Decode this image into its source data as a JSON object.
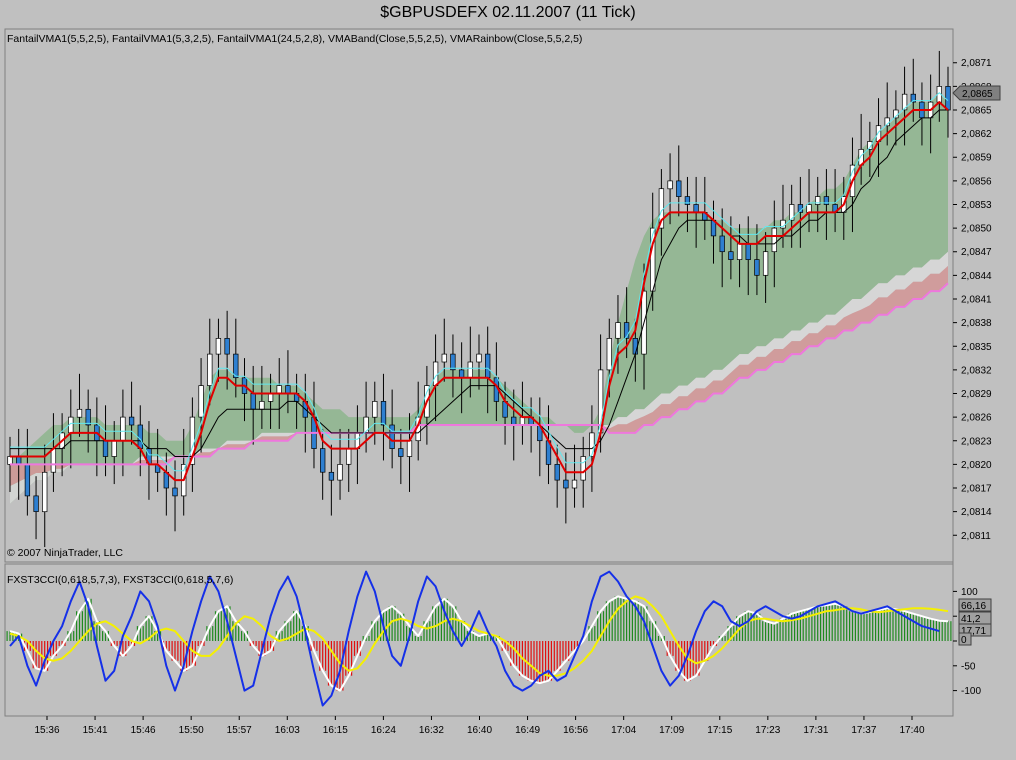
{
  "window": {
    "title": "$GBPUSDEFX  02.11.2007  (11 Tick)"
  },
  "price_panel": {
    "indicators_label": "FantailVMA1(5,5,2,5), FantailVMA1(5,3,2,5), FantailVMA1(24,5,2,8), VMABand(Close,5,5,2,5), VMARainbow(Close,5,5,2,5)",
    "copyright": "© 2007 NinjaTrader, LLC",
    "last_price_tag": "2,0865"
  },
  "cci_panel": {
    "indicators_label": "FXST3CCI(0,618,5,7,3), FXST3CCI(0,618,5,7,6)",
    "value_tags": [
      "66,16",
      "41,2",
      "17,71",
      "0"
    ]
  },
  "colors": {
    "background": "#c0c0c0",
    "up_candle": "#ffffff",
    "down_candle": "#2e7fd0",
    "vma_fast": "#e00000",
    "vma_cyan": "#5fe8ee",
    "vma_slow": "#000000",
    "band_green": "#8db58d",
    "band_light": "#d8d8d8",
    "band_red": "#d29898",
    "rainbow_line": "#ee77dd",
    "cci_hist_up": "#1f8a1f",
    "cci_hist_down": "#e01010",
    "cci_blue": "#1530e8",
    "cci_yellow": "#f5f000",
    "cci_white": "#ffffff"
  },
  "chart_data": [
    {
      "type": "line",
      "name": "price",
      "x_ticks": [
        "15:36",
        "15:41",
        "15:46",
        "15:50",
        "15:57",
        "16:03",
        "16:15",
        "16:24",
        "16:32",
        "16:40",
        "16:49",
        "16:56",
        "17:04",
        "17:09",
        "17:15",
        "17:23",
        "17:31",
        "17:37",
        "17:40"
      ],
      "y_ticks": [
        "2,0811",
        "2,0814",
        "2,0817",
        "2,0820",
        "2,0823",
        "2,0826",
        "2,0829",
        "2,0832",
        "2,0835",
        "2,0838",
        "2,0841",
        "2,0844",
        "2,0847",
        "2,0850",
        "2,0853",
        "2,0856",
        "2,0859",
        "2,0862",
        "2,0865",
        "2,0868",
        "2,0871"
      ],
      "ylim": [
        2.0809,
        2.0873
      ],
      "closes": [
        2.0821,
        2.082,
        2.0816,
        2.0814,
        2.0819,
        2.0822,
        2.0824,
        2.0826,
        2.0827,
        2.0825,
        2.0823,
        2.0821,
        2.0823,
        2.0826,
        2.0825,
        2.0822,
        2.082,
        2.0819,
        2.0817,
        2.0816,
        2.082,
        2.0826,
        2.083,
        2.0834,
        2.0836,
        2.0834,
        2.0831,
        2.0829,
        2.0827,
        2.0828,
        2.0829,
        2.083,
        2.0829,
        2.0828,
        2.0826,
        2.0822,
        2.0819,
        2.0818,
        2.082,
        2.0822,
        2.0824,
        2.0826,
        2.0828,
        2.0825,
        2.0822,
        2.0821,
        2.0823,
        2.0826,
        2.083,
        2.0833,
        2.0834,
        2.0832,
        2.0831,
        2.0833,
        2.0834,
        2.0831,
        2.0828,
        2.0826,
        2.0825,
        2.0826,
        2.0825,
        2.0823,
        2.082,
        2.0818,
        2.0817,
        2.0818,
        2.0821,
        2.0824,
        2.0832,
        2.0836,
        2.0838,
        2.0836,
        2.0834,
        2.0842,
        2.085,
        2.0855,
        2.0856,
        2.0854,
        2.0853,
        2.0852,
        2.0851,
        2.0849,
        2.0847,
        2.0846,
        2.0848,
        2.0846,
        2.0844,
        2.0847,
        2.085,
        2.0851,
        2.0853,
        2.0852,
        2.0853,
        2.0854,
        2.0853,
        2.0852,
        2.0854,
        2.0858,
        2.086,
        2.0861,
        2.0863,
        2.0864,
        2.0865,
        2.0867,
        2.0866,
        2.0864,
        2.0866,
        2.0868,
        2.0865
      ],
      "vma_fast": [
        2.0821,
        2.0821,
        2.0821,
        2.0821,
        2.0821,
        2.0822,
        2.0823,
        2.0824,
        2.0824,
        2.0824,
        2.0824,
        2.0823,
        2.0823,
        2.0823,
        2.0823,
        2.0822,
        2.082,
        2.082,
        2.0819,
        2.0818,
        2.0818,
        2.0821,
        2.0824,
        2.0828,
        2.0831,
        2.0831,
        2.083,
        2.083,
        2.0829,
        2.0829,
        2.0829,
        2.0829,
        2.0829,
        2.0829,
        2.0828,
        2.0826,
        2.0823,
        2.0822,
        2.0822,
        2.0822,
        2.0822,
        2.0823,
        2.0824,
        2.0824,
        2.0823,
        2.0823,
        2.0823,
        2.0825,
        2.0828,
        2.083,
        2.0831,
        2.0831,
        2.0831,
        2.0831,
        2.0831,
        2.0831,
        2.083,
        2.0828,
        2.0827,
        2.0826,
        2.0826,
        2.0825,
        2.0823,
        2.0821,
        2.0819,
        2.0819,
        2.0819,
        2.082,
        2.0824,
        2.083,
        2.0834,
        2.0835,
        2.0837,
        2.0843,
        2.0848,
        2.0851,
        2.0852,
        2.0852,
        2.0852,
        2.0852,
        2.0852,
        2.0851,
        2.085,
        2.0849,
        2.0848,
        2.0848,
        2.0848,
        2.0849,
        2.0849,
        2.0849,
        2.085,
        2.0851,
        2.0852,
        2.0852,
        2.0852,
        2.0852,
        2.0853,
        2.0856,
        2.0858,
        2.0859,
        2.0861,
        2.0862,
        2.0863,
        2.0864,
        2.0865,
        2.0865,
        2.0865,
        2.0866,
        2.0865
      ],
      "vma_slow": [
        2.0822,
        2.0822,
        2.0822,
        2.0822,
        2.0822,
        2.0822,
        2.0822,
        2.0823,
        2.0823,
        2.0823,
        2.0823,
        2.0823,
        2.0823,
        2.0823,
        2.0823,
        2.0823,
        2.0822,
        2.0822,
        2.0822,
        2.0821,
        2.0821,
        2.0821,
        2.0822,
        2.0824,
        2.0826,
        2.0827,
        2.0827,
        2.0827,
        2.0827,
        2.0827,
        2.0827,
        2.0827,
        2.0828,
        2.0828,
        2.0827,
        2.0826,
        2.0825,
        2.0824,
        2.0824,
        2.0824,
        2.0824,
        2.0824,
        2.0824,
        2.0824,
        2.0824,
        2.0824,
        2.0824,
        2.0824,
        2.0825,
        2.0826,
        2.0827,
        2.0828,
        2.0829,
        2.083,
        2.083,
        2.083,
        2.083,
        2.0829,
        2.0828,
        2.0827,
        2.0826,
        2.0825,
        2.0824,
        2.0823,
        2.0822,
        2.0822,
        2.0822,
        2.0822,
        2.0823,
        2.0825,
        2.0828,
        2.0831,
        2.0834,
        2.0838,
        2.0842,
        2.0846,
        2.0848,
        2.085,
        2.0851,
        2.0851,
        2.0851,
        2.0851,
        2.085,
        2.0849,
        2.0849,
        2.0848,
        2.0848,
        2.0848,
        2.0848,
        2.0849,
        2.0849,
        2.085,
        2.0851,
        2.0851,
        2.0852,
        2.0852,
        2.0852,
        2.0853,
        2.0855,
        2.0856,
        2.0858,
        2.0859,
        2.0861,
        2.0862,
        2.0863,
        2.0864,
        2.0864,
        2.0865,
        2.0865
      ],
      "band_green_top": [
        2.0821,
        2.0821,
        2.0822,
        2.0823,
        2.0824,
        2.0825,
        2.0825,
        2.0826,
        2.0826,
        2.0826,
        2.0826,
        2.0825,
        2.0825,
        2.0825,
        2.0825,
        2.0825,
        2.0824,
        2.0824,
        2.0823,
        2.0823,
        2.0823,
        2.0825,
        2.0828,
        2.0831,
        2.0832,
        2.0832,
        2.0831,
        2.0831,
        2.0831,
        2.0831,
        2.0831,
        2.083,
        2.083,
        2.083,
        2.0829,
        2.0828,
        2.0827,
        2.0827,
        2.0827,
        2.0826,
        2.0826,
        2.0826,
        2.0826,
        2.0826,
        2.0826,
        2.0826,
        2.0826,
        2.0827,
        2.0829,
        2.0831,
        2.0832,
        2.0832,
        2.0832,
        2.0832,
        2.0832,
        2.0832,
        2.0831,
        2.083,
        2.0829,
        2.0828,
        2.0827,
        2.0826,
        2.0826,
        2.0825,
        2.0825,
        2.0824,
        2.0824,
        2.0825,
        2.0827,
        2.0833,
        2.0838,
        2.0842,
        2.0846,
        2.0849,
        2.0851,
        2.0852,
        2.0852,
        2.0852,
        2.0852,
        2.0852,
        2.0852,
        2.0851,
        2.0851,
        2.085,
        2.085,
        2.085,
        2.085,
        2.085,
        2.0851,
        2.0851,
        2.0852,
        2.0852,
        2.0853,
        2.0854,
        2.0855,
        2.0855,
        2.0856,
        2.0858,
        2.086,
        2.0861,
        2.0862,
        2.0863,
        2.0864,
        2.0865,
        2.0866,
        2.0866,
        2.0866,
        2.0867,
        2.0866
      ],
      "band_green_bottom": [
        2.0815,
        2.0816,
        2.0817,
        2.0818,
        2.0818,
        2.0819,
        2.0819,
        2.082,
        2.082,
        2.082,
        2.082,
        2.082,
        2.082,
        2.082,
        2.082,
        2.0821,
        2.0821,
        2.0821,
        2.0821,
        2.0821,
        2.0821,
        2.0821,
        2.0822,
        2.0822,
        2.0822,
        2.0823,
        2.0823,
        2.0823,
        2.0823,
        2.0824,
        2.0824,
        2.0824,
        2.0824,
        2.0824,
        2.0824,
        2.0824,
        2.0824,
        2.0824,
        2.0824,
        2.0824,
        2.0824,
        2.0824,
        2.0824,
        2.0824,
        2.0824,
        2.0824,
        2.0824,
        2.0825,
        2.0825,
        2.0825,
        2.0825,
        2.0825,
        2.0825,
        2.0825,
        2.0825,
        2.0825,
        2.0825,
        2.0825,
        2.0825,
        2.0825,
        2.0825,
        2.0825,
        2.0825,
        2.0825,
        2.0825,
        2.0825,
        2.0825,
        2.0825,
        2.0825,
        2.0825,
        2.0826,
        2.0826,
        2.0827,
        2.0827,
        2.0828,
        2.0829,
        2.0829,
        2.083,
        2.083,
        2.0831,
        2.0831,
        2.0832,
        2.0832,
        2.0833,
        2.0834,
        2.0834,
        2.0835,
        2.0835,
        2.0836,
        2.0836,
        2.0837,
        2.0837,
        2.0838,
        2.0838,
        2.0839,
        2.0839,
        2.084,
        2.0841,
        2.0841,
        2.0842,
        2.0843,
        2.0843,
        2.0844,
        2.0844,
        2.0845,
        2.0845,
        2.0846,
        2.0846,
        2.0847
      ],
      "rainbow_line": [
        2.082,
        2.082,
        2.082,
        2.082,
        2.082,
        2.082,
        2.082,
        2.082,
        2.082,
        2.082,
        2.082,
        2.082,
        2.082,
        2.082,
        2.082,
        2.082,
        2.082,
        2.082,
        2.082,
        2.0821,
        2.0821,
        2.0821,
        2.0821,
        2.0821,
        2.0822,
        2.0822,
        2.0822,
        2.0822,
        2.0823,
        2.0823,
        2.0823,
        2.0823,
        2.0823,
        2.0824,
        2.0824,
        2.0824,
        2.0824,
        2.0824,
        2.0824,
        2.0824,
        2.0824,
        2.0824,
        2.0824,
        2.0824,
        2.0824,
        2.0824,
        2.0824,
        2.0825,
        2.0825,
        2.0825,
        2.0825,
        2.0825,
        2.0825,
        2.0825,
        2.0825,
        2.0825,
        2.0825,
        2.0825,
        2.0825,
        2.0825,
        2.0825,
        2.0825,
        2.0825,
        2.0825,
        2.0825,
        2.0825,
        2.0825,
        2.0825,
        2.0825,
        2.0824,
        2.0824,
        2.0824,
        2.0824,
        2.0825,
        2.0825,
        2.0826,
        2.0826,
        2.0827,
        2.0827,
        2.0828,
        2.0828,
        2.0829,
        2.0829,
        2.083,
        2.0831,
        2.0831,
        2.0832,
        2.0832,
        2.0833,
        2.0833,
        2.0834,
        2.0834,
        2.0835,
        2.0835,
        2.0836,
        2.0836,
        2.0837,
        2.0837,
        2.0838,
        2.0838,
        2.0839,
        2.0839,
        2.084,
        2.084,
        2.0841,
        2.0841,
        2.0842,
        2.0842,
        2.0843
      ]
    },
    {
      "type": "bar",
      "name": "cci",
      "y_ticks": [
        "100",
        "50",
        "0",
        "-50",
        "-100"
      ],
      "ylim": [
        -125,
        125
      ],
      "histogram": [
        20,
        15,
        -20,
        -55,
        -60,
        -30,
        -10,
        20,
        60,
        85,
        40,
        20,
        -10,
        -30,
        -10,
        30,
        50,
        20,
        -20,
        -40,
        -60,
        -50,
        -10,
        30,
        60,
        70,
        40,
        20,
        -10,
        -30,
        -20,
        20,
        40,
        60,
        30,
        -20,
        -60,
        -90,
        -100,
        -70,
        -30,
        10,
        40,
        60,
        70,
        55,
        30,
        10,
        40,
        70,
        85,
        70,
        40,
        20,
        10,
        15,
        10,
        -20,
        -50,
        -70,
        -80,
        -85,
        -80,
        -60,
        -40,
        -20,
        0,
        30,
        60,
        80,
        90,
        85,
        80,
        70,
        40,
        10,
        -30,
        -60,
        -80,
        -70,
        -40,
        -10,
        10,
        30,
        50,
        60,
        55,
        40,
        35,
        45,
        55,
        60,
        65,
        70,
        72,
        75,
        70,
        60,
        55,
        58,
        62,
        66,
        64,
        60,
        55,
        50,
        45,
        41,
        40
      ],
      "blue_line": [
        -10,
        10,
        -50,
        -90,
        -40,
        0,
        30,
        80,
        120,
        70,
        -10,
        -80,
        -60,
        10,
        50,
        100,
        80,
        30,
        -50,
        -100,
        -50,
        20,
        80,
        130,
        100,
        40,
        -30,
        -100,
        -90,
        -20,
        50,
        100,
        130,
        90,
        20,
        -60,
        -130,
        -110,
        -60,
        20,
        90,
        140,
        100,
        30,
        -30,
        -50,
        10,
        80,
        130,
        110,
        60,
        20,
        -10,
        20,
        60,
        20,
        -10,
        -60,
        -90,
        -100,
        -90,
        -70,
        -60,
        -80,
        -70,
        -30,
        10,
        80,
        130,
        140,
        120,
        90,
        70,
        40,
        -10,
        -60,
        -90,
        -70,
        -30,
        20,
        60,
        80,
        70,
        40,
        30,
        40,
        60,
        70,
        60,
        50,
        45,
        50,
        60,
        70,
        75,
        80,
        70,
        60,
        55,
        60,
        65,
        70,
        60,
        50,
        40,
        30,
        25,
        20
      ],
      "yellow_line": [
        15,
        10,
        0,
        -20,
        -35,
        -40,
        -35,
        -20,
        0,
        20,
        35,
        40,
        30,
        15,
        0,
        -5,
        5,
        20,
        25,
        20,
        0,
        -20,
        -30,
        -30,
        -15,
        10,
        35,
        50,
        45,
        30,
        10,
        0,
        5,
        15,
        25,
        20,
        5,
        -20,
        -45,
        -60,
        -55,
        -35,
        -5,
        20,
        40,
        45,
        40,
        30,
        25,
        30,
        40,
        45,
        40,
        30,
        20,
        15,
        10,
        0,
        -15,
        -35,
        -50,
        -65,
        -70,
        -70,
        -65,
        -55,
        -40,
        -20,
        10,
        40,
        65,
        80,
        90,
        85,
        70,
        50,
        20,
        -10,
        -35,
        -45,
        -40,
        -30,
        -15,
        5,
        25,
        40,
        45,
        45,
        42,
        40,
        42,
        45,
        50,
        55,
        60,
        62,
        65,
        66,
        64,
        60,
        58,
        60,
        62,
        64,
        66,
        66,
        65,
        63,
        60
      ],
      "white_line": [
        20,
        15,
        -20,
        -55,
        -60,
        -30,
        -10,
        20,
        60,
        85,
        40,
        20,
        -10,
        -30,
        -10,
        30,
        50,
        20,
        -20,
        -40,
        -60,
        -50,
        -10,
        30,
        60,
        70,
        40,
        20,
        -10,
        -30,
        -20,
        20,
        40,
        60,
        30,
        -20,
        -60,
        -90,
        -100,
        -70,
        -30,
        10,
        40,
        60,
        70,
        55,
        30,
        10,
        40,
        70,
        85,
        70,
        40,
        20,
        10,
        15,
        10,
        -20,
        -50,
        -70,
        -80,
        -85,
        -80,
        -60,
        -40,
        -20,
        0,
        30,
        60,
        80,
        90,
        85,
        80,
        70,
        40,
        10,
        -30,
        -60,
        -80,
        -70,
        -40,
        -10,
        10,
        30,
        50,
        60,
        55,
        40,
        35,
        45,
        55,
        60,
        65,
        70,
        72,
        75,
        70,
        60,
        55,
        58,
        62,
        66,
        64,
        60,
        55,
        50,
        45,
        41,
        40
      ]
    }
  ]
}
